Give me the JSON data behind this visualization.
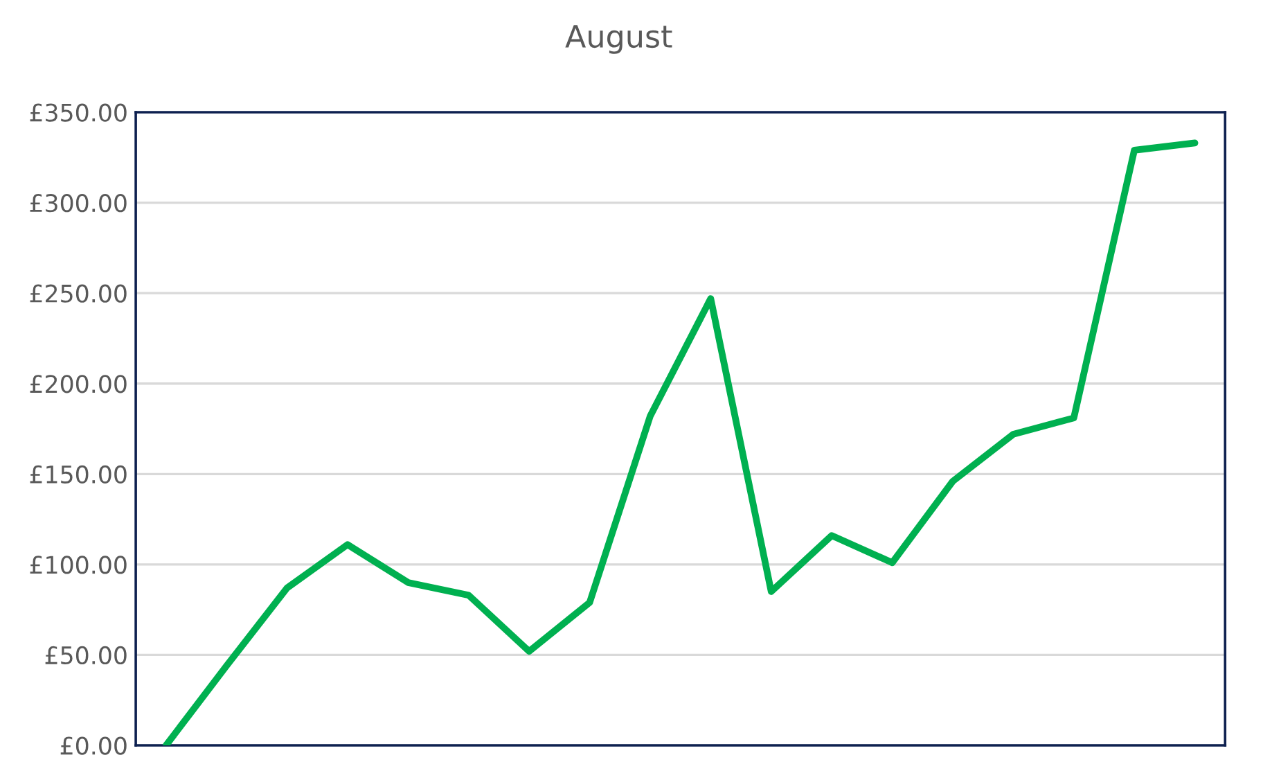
{
  "chart_data": {
    "type": "line",
    "title": "August",
    "categories": [
      null,
      null,
      null,
      null,
      null,
      null,
      null,
      null,
      null,
      null,
      null,
      null,
      null,
      null,
      null,
      null,
      null,
      null
    ],
    "series": [
      {
        "color": "#00b050",
        "values": [
          0,
          44,
          87,
          111,
          90,
          83,
          52,
          79,
          182,
          247,
          85,
          116,
          101,
          146,
          172,
          181,
          329,
          333
        ]
      }
    ],
    "ylim": [
      0,
      350
    ],
    "yticks": [
      {
        "value": 0,
        "label": "£0.00"
      },
      {
        "value": 50,
        "label": "£50.00"
      },
      {
        "value": 100,
        "label": "£100.00"
      },
      {
        "value": 150,
        "label": "£150.00"
      },
      {
        "value": 200,
        "label": "£200.00"
      },
      {
        "value": 250,
        "label": "£250.00"
      },
      {
        "value": 300,
        "label": "£300.00"
      },
      {
        "value": 350,
        "label": "£350.00"
      }
    ],
    "grid": "y",
    "tick_labels": "y",
    "marker": "none",
    "line_style": "solid"
  }
}
